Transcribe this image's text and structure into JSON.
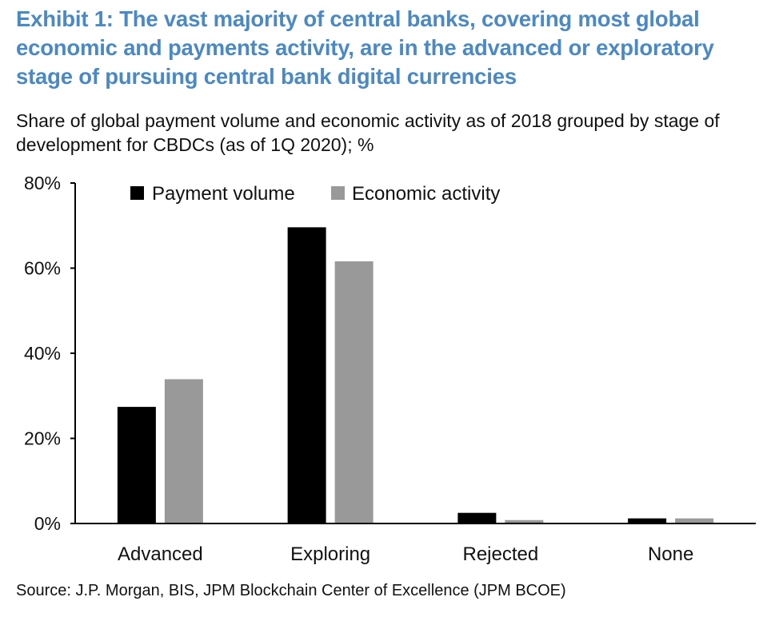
{
  "title": "Exhibit 1: The vast majority of central banks, covering most global economic and payments activity, are in the advanced or exploratory stage of pursuing central bank digital currencies",
  "subtitle": "Share of global payment volume and economic activity as of 2018 grouped by stage of development for CBDCs (as of 1Q 2020); %",
  "source": "Source: J.P.  Morgan, BIS, JPM Blockchain Center of Excellence (JPM BCOE)",
  "colors": {
    "title": "#4a89c3",
    "payment_volume": "#000000",
    "economic_activity": "#999999"
  },
  "chart_data": {
    "type": "bar",
    "categories": [
      "Advanced",
      "Exploring",
      "Rejected",
      "None"
    ],
    "series": [
      {
        "name": "Payment volume",
        "values": [
          27.4,
          69.6,
          2.5,
          1.2
        ]
      },
      {
        "name": "Economic activity",
        "values": [
          33.9,
          61.6,
          0.8,
          1.2
        ]
      }
    ],
    "ylim": [
      0,
      80
    ],
    "yticks": [
      0,
      20,
      40,
      60,
      80
    ],
    "ytick_labels": [
      "0%",
      "20%",
      "40%",
      "60%",
      "80%"
    ],
    "xlabel": "",
    "ylabel": "",
    "legend_position": "top",
    "grid": false
  }
}
